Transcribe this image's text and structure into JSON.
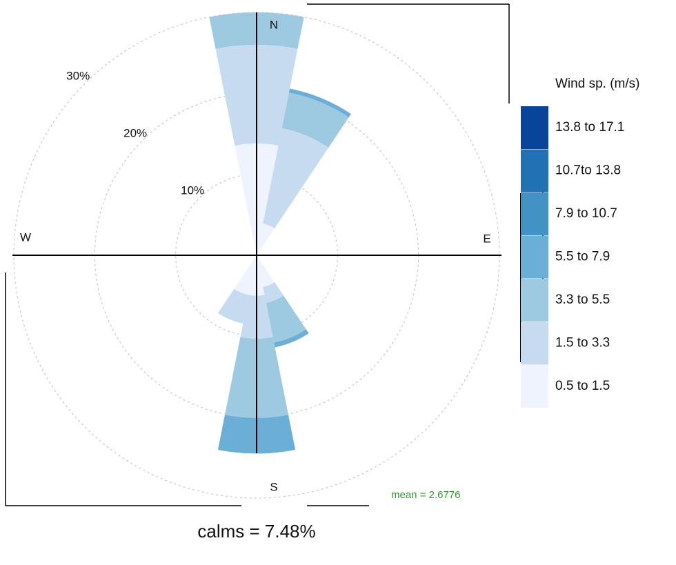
{
  "chart_data": {
    "type": "windrose",
    "compass": [
      "N",
      "E",
      "S",
      "W"
    ],
    "x": [
      0,
      22.5,
      157.5,
      180,
      202.5
    ],
    "ylim": [
      0,
      30
    ],
    "yticks": [
      {
        "value": 10,
        "label": "10%"
      },
      {
        "value": 20,
        "label": "20%"
      },
      {
        "value": 30,
        "label": "30%"
      }
    ],
    "grid": true,
    "legend_title": "Wind sp. (m/s)",
    "series": [
      {
        "name": "13.8 to 17.1",
        "color": "#08459a",
        "values": [
          0,
          0,
          0,
          0,
          0
        ]
      },
      {
        "name": "10.7to 13.8",
        "color": "#2171b5",
        "values": [
          0,
          0,
          0,
          0,
          0
        ]
      },
      {
        "name": "7.9 to 10.7",
        "color": "#4292c6",
        "values": [
          0,
          0,
          0,
          0,
          0
        ]
      },
      {
        "name": "5.5 to 7.9",
        "color": "#6baed6",
        "values": [
          0,
          0.5,
          0.6,
          4.4,
          0
        ]
      },
      {
        "name": "3.3 to 5.5",
        "color": "#9ecae1",
        "values": [
          4,
          4.5,
          5,
          9.8,
          0
        ]
      },
      {
        "name": "1.5 to 3.3",
        "color": "#c6dbef",
        "values": [
          12.2,
          12,
          2,
          5.3,
          3.6
        ]
      },
      {
        "name": "0.5 to 1.5",
        "color": "#eef3fd",
        "values": [
          13.8,
          4,
          4,
          5,
          5
        ]
      }
    ],
    "mean_label": "mean = 2.6776",
    "calms_label": "calms = 7.48%"
  }
}
